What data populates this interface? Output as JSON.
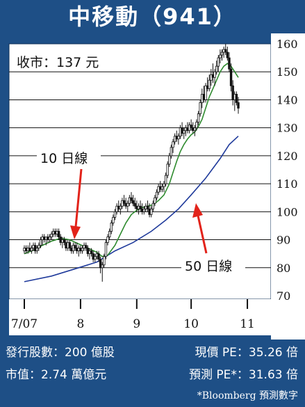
{
  "header": {
    "title": "中移動（941）"
  },
  "chart_data": {
    "type": "candlestick",
    "annotation_price": "收市：137 元",
    "ylim": [
      70,
      160
    ],
    "yticks": [
      160,
      150,
      140,
      130,
      120,
      110,
      100,
      90,
      80,
      70
    ],
    "ytick_labels": [
      "160",
      "150",
      "140",
      "130",
      "120",
      "110",
      "100",
      "90",
      "80",
      "70"
    ],
    "xtick_labels": [
      "7/07",
      "8",
      "9",
      "10",
      "11"
    ],
    "xtick_days": [
      0,
      31,
      62,
      92,
      123
    ],
    "gridlines": [
      150,
      140,
      130,
      120,
      110,
      100,
      90,
      80
    ],
    "ma10_label": "10 日線",
    "ma50_label": "50 日線",
    "colors": {
      "background": "#1e4f86",
      "plot": "#ffffff",
      "ma10": "#2e8b2e",
      "ma50": "#1f3a9b",
      "arrow": "#e2231a",
      "candle": "#111111"
    },
    "candles": [
      {
        "d": 0,
        "o": 86,
        "h": 88,
        "l": 85,
        "c": 87
      },
      {
        "d": 1,
        "o": 87,
        "h": 88,
        "l": 85,
        "c": 86
      },
      {
        "d": 2,
        "o": 86,
        "h": 88,
        "l": 85,
        "c": 87
      },
      {
        "d": 3,
        "o": 87,
        "h": 89,
        "l": 86,
        "c": 86
      },
      {
        "d": 4,
        "o": 86,
        "h": 88,
        "l": 85,
        "c": 87
      },
      {
        "d": 5,
        "o": 87,
        "h": 89,
        "l": 86,
        "c": 88
      },
      {
        "d": 6,
        "o": 88,
        "h": 89,
        "l": 85,
        "c": 86
      },
      {
        "d": 7,
        "o": 86,
        "h": 88,
        "l": 85,
        "c": 87
      },
      {
        "d": 8,
        "o": 87,
        "h": 89,
        "l": 86,
        "c": 88
      },
      {
        "d": 9,
        "o": 88,
        "h": 91,
        "l": 87,
        "c": 90
      },
      {
        "d": 10,
        "o": 90,
        "h": 92,
        "l": 88,
        "c": 91
      },
      {
        "d": 11,
        "o": 91,
        "h": 92,
        "l": 89,
        "c": 90
      },
      {
        "d": 12,
        "o": 90,
        "h": 91,
        "l": 88,
        "c": 91
      },
      {
        "d": 13,
        "o": 91,
        "h": 92,
        "l": 89,
        "c": 90
      },
      {
        "d": 14,
        "o": 90,
        "h": 92,
        "l": 89,
        "c": 91
      },
      {
        "d": 15,
        "o": 91,
        "h": 93,
        "l": 90,
        "c": 92
      },
      {
        "d": 16,
        "o": 92,
        "h": 94,
        "l": 91,
        "c": 93
      },
      {
        "d": 17,
        "o": 93,
        "h": 94,
        "l": 91,
        "c": 92
      },
      {
        "d": 18,
        "o": 92,
        "h": 94,
        "l": 91,
        "c": 93
      },
      {
        "d": 19,
        "o": 93,
        "h": 94,
        "l": 90,
        "c": 91
      },
      {
        "d": 20,
        "o": 91,
        "h": 92,
        "l": 88,
        "c": 89
      },
      {
        "d": 21,
        "o": 89,
        "h": 91,
        "l": 87,
        "c": 90
      },
      {
        "d": 22,
        "o": 90,
        "h": 91,
        "l": 88,
        "c": 89
      },
      {
        "d": 23,
        "o": 89,
        "h": 90,
        "l": 86,
        "c": 87
      },
      {
        "d": 24,
        "o": 87,
        "h": 90,
        "l": 86,
        "c": 89
      },
      {
        "d": 25,
        "o": 89,
        "h": 90,
        "l": 86,
        "c": 87
      },
      {
        "d": 26,
        "o": 87,
        "h": 88,
        "l": 85,
        "c": 86
      },
      {
        "d": 27,
        "o": 86,
        "h": 89,
        "l": 85,
        "c": 88
      },
      {
        "d": 28,
        "o": 88,
        "h": 89,
        "l": 86,
        "c": 87
      },
      {
        "d": 29,
        "o": 87,
        "h": 89,
        "l": 85,
        "c": 86
      },
      {
        "d": 30,
        "o": 86,
        "h": 88,
        "l": 84,
        "c": 87
      },
      {
        "d": 31,
        "o": 87,
        "h": 88,
        "l": 85,
        "c": 86
      },
      {
        "d": 32,
        "o": 86,
        "h": 88,
        "l": 85,
        "c": 87
      },
      {
        "d": 33,
        "o": 87,
        "h": 89,
        "l": 86,
        "c": 88
      },
      {
        "d": 34,
        "o": 88,
        "h": 89,
        "l": 86,
        "c": 87
      },
      {
        "d": 35,
        "o": 87,
        "h": 88,
        "l": 84,
        "c": 85
      },
      {
        "d": 36,
        "o": 85,
        "h": 87,
        "l": 83,
        "c": 86
      },
      {
        "d": 37,
        "o": 86,
        "h": 87,
        "l": 84,
        "c": 85
      },
      {
        "d": 38,
        "o": 85,
        "h": 86,
        "l": 82,
        "c": 83
      },
      {
        "d": 39,
        "o": 83,
        "h": 85,
        "l": 82,
        "c": 84
      },
      {
        "d": 40,
        "o": 84,
        "h": 86,
        "l": 83,
        "c": 85
      },
      {
        "d": 41,
        "o": 85,
        "h": 86,
        "l": 82,
        "c": 83
      },
      {
        "d": 42,
        "o": 83,
        "h": 84,
        "l": 78,
        "c": 80
      },
      {
        "d": 43,
        "o": 80,
        "h": 82,
        "l": 75,
        "c": 81
      },
      {
        "d": 44,
        "o": 81,
        "h": 85,
        "l": 80,
        "c": 84
      },
      {
        "d": 45,
        "o": 84,
        "h": 90,
        "l": 83,
        "c": 89
      },
      {
        "d": 46,
        "o": 89,
        "h": 92,
        "l": 88,
        "c": 91
      },
      {
        "d": 47,
        "o": 91,
        "h": 94,
        "l": 90,
        "c": 93
      },
      {
        "d": 48,
        "o": 93,
        "h": 97,
        "l": 92,
        "c": 96
      },
      {
        "d": 49,
        "o": 96,
        "h": 99,
        "l": 95,
        "c": 98
      },
      {
        "d": 50,
        "o": 98,
        "h": 101,
        "l": 97,
        "c": 100
      },
      {
        "d": 51,
        "o": 100,
        "h": 103,
        "l": 99,
        "c": 102
      },
      {
        "d": 52,
        "o": 102,
        "h": 104,
        "l": 100,
        "c": 101
      },
      {
        "d": 53,
        "o": 101,
        "h": 103,
        "l": 99,
        "c": 102
      },
      {
        "d": 54,
        "o": 102,
        "h": 105,
        "l": 101,
        "c": 104
      },
      {
        "d": 55,
        "o": 104,
        "h": 106,
        "l": 102,
        "c": 103
      },
      {
        "d": 56,
        "o": 103,
        "h": 105,
        "l": 101,
        "c": 102
      },
      {
        "d": 57,
        "o": 102,
        "h": 104,
        "l": 100,
        "c": 103
      },
      {
        "d": 58,
        "o": 103,
        "h": 106,
        "l": 102,
        "c": 105
      },
      {
        "d": 59,
        "o": 105,
        "h": 107,
        "l": 103,
        "c": 104
      },
      {
        "d": 60,
        "o": 104,
        "h": 106,
        "l": 102,
        "c": 103
      },
      {
        "d": 61,
        "o": 103,
        "h": 105,
        "l": 101,
        "c": 102
      },
      {
        "d": 62,
        "o": 102,
        "h": 104,
        "l": 100,
        "c": 101
      },
      {
        "d": 63,
        "o": 101,
        "h": 103,
        "l": 99,
        "c": 102
      },
      {
        "d": 64,
        "o": 102,
        "h": 104,
        "l": 100,
        "c": 101
      },
      {
        "d": 65,
        "o": 101,
        "h": 103,
        "l": 99,
        "c": 100
      },
      {
        "d": 66,
        "o": 100,
        "h": 102,
        "l": 99,
        "c": 101
      },
      {
        "d": 67,
        "o": 101,
        "h": 103,
        "l": 100,
        "c": 102
      },
      {
        "d": 68,
        "o": 102,
        "h": 104,
        "l": 100,
        "c": 101
      },
      {
        "d": 69,
        "o": 101,
        "h": 103,
        "l": 98,
        "c": 99
      },
      {
        "d": 70,
        "o": 99,
        "h": 102,
        "l": 98,
        "c": 101
      },
      {
        "d": 71,
        "o": 101,
        "h": 104,
        "l": 100,
        "c": 103
      },
      {
        "d": 72,
        "o": 103,
        "h": 106,
        "l": 102,
        "c": 105
      },
      {
        "d": 73,
        "o": 105,
        "h": 108,
        "l": 104,
        "c": 107
      },
      {
        "d": 74,
        "o": 107,
        "h": 110,
        "l": 106,
        "c": 109
      },
      {
        "d": 75,
        "o": 109,
        "h": 111,
        "l": 107,
        "c": 108
      },
      {
        "d": 76,
        "o": 108,
        "h": 110,
        "l": 107,
        "c": 109
      },
      {
        "d": 77,
        "o": 109,
        "h": 111,
        "l": 107,
        "c": 110
      },
      {
        "d": 78,
        "o": 110,
        "h": 114,
        "l": 109,
        "c": 113
      },
      {
        "d": 79,
        "o": 113,
        "h": 118,
        "l": 112,
        "c": 117
      },
      {
        "d": 80,
        "o": 117,
        "h": 121,
        "l": 116,
        "c": 120
      },
      {
        "d": 81,
        "o": 120,
        "h": 124,
        "l": 119,
        "c": 123
      },
      {
        "d": 82,
        "o": 123,
        "h": 126,
        "l": 121,
        "c": 125
      },
      {
        "d": 83,
        "o": 125,
        "h": 128,
        "l": 124,
        "c": 127
      },
      {
        "d": 84,
        "o": 127,
        "h": 129,
        "l": 125,
        "c": 126
      },
      {
        "d": 85,
        "o": 126,
        "h": 128,
        "l": 124,
        "c": 127
      },
      {
        "d": 86,
        "o": 127,
        "h": 131,
        "l": 126,
        "c": 130
      },
      {
        "d": 87,
        "o": 130,
        "h": 132,
        "l": 127,
        "c": 128
      },
      {
        "d": 88,
        "o": 128,
        "h": 130,
        "l": 126,
        "c": 129
      },
      {
        "d": 89,
        "o": 129,
        "h": 131,
        "l": 127,
        "c": 130
      },
      {
        "d": 90,
        "o": 130,
        "h": 132,
        "l": 128,
        "c": 129
      },
      {
        "d": 91,
        "o": 129,
        "h": 132,
        "l": 128,
        "c": 131
      },
      {
        "d": 92,
        "o": 131,
        "h": 133,
        "l": 129,
        "c": 130
      },
      {
        "d": 93,
        "o": 130,
        "h": 132,
        "l": 128,
        "c": 129
      },
      {
        "d": 94,
        "o": 129,
        "h": 131,
        "l": 127,
        "c": 130
      },
      {
        "d": 95,
        "o": 130,
        "h": 133,
        "l": 129,
        "c": 132
      },
      {
        "d": 96,
        "o": 132,
        "h": 136,
        "l": 131,
        "c": 135
      },
      {
        "d": 97,
        "o": 135,
        "h": 140,
        "l": 134,
        "c": 139
      },
      {
        "d": 98,
        "o": 139,
        "h": 144,
        "l": 137,
        "c": 142
      },
      {
        "d": 99,
        "o": 142,
        "h": 145,
        "l": 139,
        "c": 140
      },
      {
        "d": 100,
        "o": 140,
        "h": 146,
        "l": 139,
        "c": 145
      },
      {
        "d": 101,
        "o": 145,
        "h": 148,
        "l": 143,
        "c": 144
      },
      {
        "d": 102,
        "o": 144,
        "h": 149,
        "l": 143,
        "c": 147
      },
      {
        "d": 103,
        "o": 147,
        "h": 151,
        "l": 145,
        "c": 149
      },
      {
        "d": 104,
        "o": 149,
        "h": 153,
        "l": 146,
        "c": 148
      },
      {
        "d": 105,
        "o": 148,
        "h": 151,
        "l": 145,
        "c": 150
      },
      {
        "d": 106,
        "o": 150,
        "h": 154,
        "l": 149,
        "c": 152
      },
      {
        "d": 107,
        "o": 152,
        "h": 156,
        "l": 150,
        "c": 155
      },
      {
        "d": 108,
        "o": 155,
        "h": 158,
        "l": 153,
        "c": 156
      },
      {
        "d": 109,
        "o": 156,
        "h": 158,
        "l": 154,
        "c": 157
      },
      {
        "d": 110,
        "o": 157,
        "h": 159,
        "l": 155,
        "c": 158
      },
      {
        "d": 111,
        "o": 158,
        "h": 160,
        "l": 156,
        "c": 157
      },
      {
        "d": 112,
        "o": 157,
        "h": 159,
        "l": 154,
        "c": 155
      },
      {
        "d": 113,
        "o": 155,
        "h": 157,
        "l": 150,
        "c": 151
      },
      {
        "d": 114,
        "o": 151,
        "h": 153,
        "l": 143,
        "c": 145
      },
      {
        "d": 115,
        "o": 145,
        "h": 147,
        "l": 138,
        "c": 140
      },
      {
        "d": 116,
        "o": 140,
        "h": 143,
        "l": 136,
        "c": 142
      },
      {
        "d": 117,
        "o": 142,
        "h": 143,
        "l": 138,
        "c": 139
      },
      {
        "d": 118,
        "o": 139,
        "h": 141,
        "l": 135,
        "c": 137
      }
    ],
    "ma10": [
      [
        0,
        85
      ],
      [
        6,
        86.5
      ],
      [
        10,
        88
      ],
      [
        15,
        89.5
      ],
      [
        20,
        90.5
      ],
      [
        25,
        90
      ],
      [
        30,
        88.5
      ],
      [
        35,
        87
      ],
      [
        40,
        85.5
      ],
      [
        43,
        84
      ],
      [
        46,
        84.5
      ],
      [
        50,
        88
      ],
      [
        53,
        92
      ],
      [
        56,
        96
      ],
      [
        59,
        99
      ],
      [
        62,
        100.5
      ],
      [
        65,
        101.5
      ],
      [
        68,
        102
      ],
      [
        71,
        102.5
      ],
      [
        74,
        104
      ],
      [
        77,
        106
      ],
      [
        80,
        110
      ],
      [
        82,
        114
      ],
      [
        84,
        118
      ],
      [
        86,
        121.5
      ],
      [
        88,
        124
      ],
      [
        90,
        126
      ],
      [
        92,
        127.5
      ],
      [
        94,
        128.5
      ],
      [
        96,
        130.5
      ],
      [
        98,
        133
      ],
      [
        100,
        137
      ],
      [
        102,
        141
      ],
      [
        104,
        144
      ],
      [
        106,
        147
      ],
      [
        108,
        150
      ],
      [
        110,
        152
      ],
      [
        112,
        153
      ],
      [
        114,
        152
      ],
      [
        116,
        150
      ],
      [
        118,
        148
      ]
    ],
    "ma50": [
      [
        0,
        75
      ],
      [
        15,
        77
      ],
      [
        30,
        80
      ],
      [
        40,
        82
      ],
      [
        50,
        86
      ],
      [
        60,
        89
      ],
      [
        70,
        93
      ],
      [
        78,
        97
      ],
      [
        85,
        101
      ],
      [
        92,
        106
      ],
      [
        100,
        112
      ],
      [
        108,
        119
      ],
      [
        113,
        124
      ],
      [
        118,
        127
      ]
    ]
  },
  "footer": {
    "shares": "發行股數：200 億股",
    "pe_current": "現價 PE：35.26 倍",
    "market_cap": "市值：2.74 萬億元",
    "pe_forecast": "預測 PE*：31.63 倍",
    "source": "*Bloomberg 預測數字"
  }
}
